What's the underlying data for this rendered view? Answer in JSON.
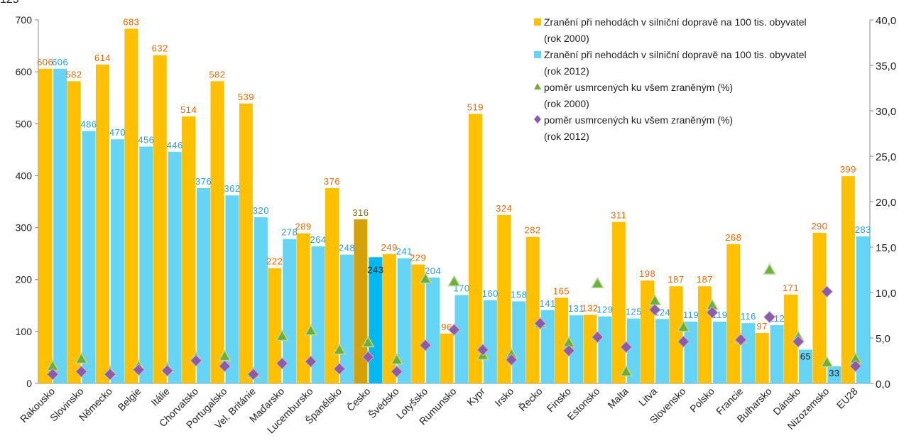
{
  "corner_label": "125",
  "colors": {
    "bar_2000": "#FFC000",
    "bar_2012": "#66D4F5",
    "bar_2000_highlight": "#D4A106",
    "bar_2012_highlight": "#00B9F1",
    "triangle": "#6EAE3A",
    "diamond": "#8B5CA8",
    "label_2000": "#E46C0A",
    "label_2012": "#2A9FD6"
  },
  "chart_data": {
    "type": "bar",
    "categories": [
      "Rakousko",
      "Slovinsko",
      "Německo",
      "Belgie",
      "Itálie",
      "Chorvatsko",
      "Portugalsko",
      "Vel. Británie",
      "Maďarsko",
      "Lucembursko",
      "Španělsko",
      "Česko",
      "Švédsko",
      "Lotyšsko",
      "Rumunsko",
      "Kypr",
      "Irsko",
      "Řecko",
      "Finsko",
      "Estonsko",
      "Malta",
      "Litva",
      "Slovensko",
      "Polsko",
      "Francie",
      "Bulharsko",
      "Dánsko",
      "Nizozemsko",
      "EU28"
    ],
    "highlight_category": "Česko",
    "series": [
      {
        "name": "Zranění při nehodách v silniční dopravě na 100 tis. obyvatel (rok 2000)",
        "legend_lines": [
          "Zranění při nehodách v silniční dopravě na 100 tis. obyvatel",
          "(rok 2000)"
        ],
        "type": "bar",
        "axis": "left",
        "values": [
          606,
          582,
          614,
          683,
          632,
          514,
          582,
          539,
          222,
          289,
          376,
          316,
          249,
          229,
          96,
          519,
          324,
          282,
          165,
          132,
          311,
          198,
          187,
          187,
          268,
          97,
          171,
          290,
          399
        ],
        "labels": [
          "606",
          "582",
          "614",
          "683",
          "632",
          "514",
          "582",
          "539",
          "222",
          "289",
          "376",
          "316",
          "249",
          "229",
          "96",
          "519",
          "324",
          "282",
          "165",
          "132",
          "311",
          "198",
          "187",
          "187",
          "268",
          "97",
          "171",
          "290",
          "399"
        ]
      },
      {
        "name": "Zranění při nehodách v silniční dopravě na 100 tis. obyvatel (rok 2012)",
        "legend_lines": [
          "Zranění při nehodách v silniční dopravě na 100 tis. obyvatel",
          "(rok 2012)"
        ],
        "type": "bar",
        "axis": "left",
        "values": [
          606,
          486,
          470,
          456,
          446,
          376,
          362,
          320,
          278,
          264,
          248,
          243,
          241,
          204,
          170,
          160,
          158,
          141,
          131,
          129,
          125,
          124,
          119,
          119,
          116,
          112,
          65,
          33,
          283
        ],
        "labels": [
          "606",
          "486",
          "470",
          "456",
          "446",
          "376",
          "362",
          "320",
          "278",
          "264",
          "248",
          "243",
          "241",
          "204",
          "170",
          "160",
          "158",
          "141",
          "131",
          "129",
          "125",
          "124",
          "119",
          "119",
          "116",
          "112",
          "65",
          "33",
          "283"
        ]
      },
      {
        "name": "poměr usmrcených ku všem zraněným (%) (rok 2000)",
        "legend_lines": [
          "poměr usmrcených ku všem zraněným (%)",
          "(rok 2000)"
        ],
        "type": "scatter",
        "marker": "triangle",
        "axis": "right",
        "values": [
          1.9,
          2.7,
          1.3,
          1.9,
          1.7,
          2.8,
          3.0,
          1.1,
          5.2,
          5.8,
          3.7,
          4.5,
          2.6,
          11.5,
          11.2,
          3.1,
          3.2,
          6.6,
          4.5,
          11.0,
          1.3,
          9.1,
          6.2,
          8.6,
          4.9,
          12.5,
          5.1,
          2.3,
          2.7
        ]
      },
      {
        "name": "poměr usmrcených ku všem zraněným (%) (rok 2012)",
        "legend_lines": [
          "poměr usmrcených ku všem zraněným (%)",
          "(rok 2012)"
        ],
        "type": "scatter",
        "marker": "diamond",
        "axis": "right",
        "values": [
          1.0,
          1.3,
          1.0,
          1.5,
          1.4,
          2.5,
          1.9,
          1.0,
          2.2,
          2.4,
          1.6,
          2.9,
          1.3,
          4.2,
          5.9,
          3.7,
          2.6,
          6.6,
          3.6,
          5.1,
          4.0,
          8.1,
          4.6,
          7.8,
          4.8,
          7.3,
          4.6,
          10.1,
          1.9
        ]
      }
    ],
    "y_left": {
      "min": 0,
      "max": 700,
      "ticks": [
        "0",
        "100",
        "200",
        "300",
        "400",
        "500",
        "600",
        "700"
      ]
    },
    "y_right": {
      "min": 0,
      "max": 40,
      "ticks": [
        "0,0",
        "5,0",
        "10,0",
        "15,0",
        "20,0",
        "25,0",
        "30,0",
        "35,0",
        "40,0"
      ]
    },
    "grid": false,
    "legend_position": "top-right"
  }
}
